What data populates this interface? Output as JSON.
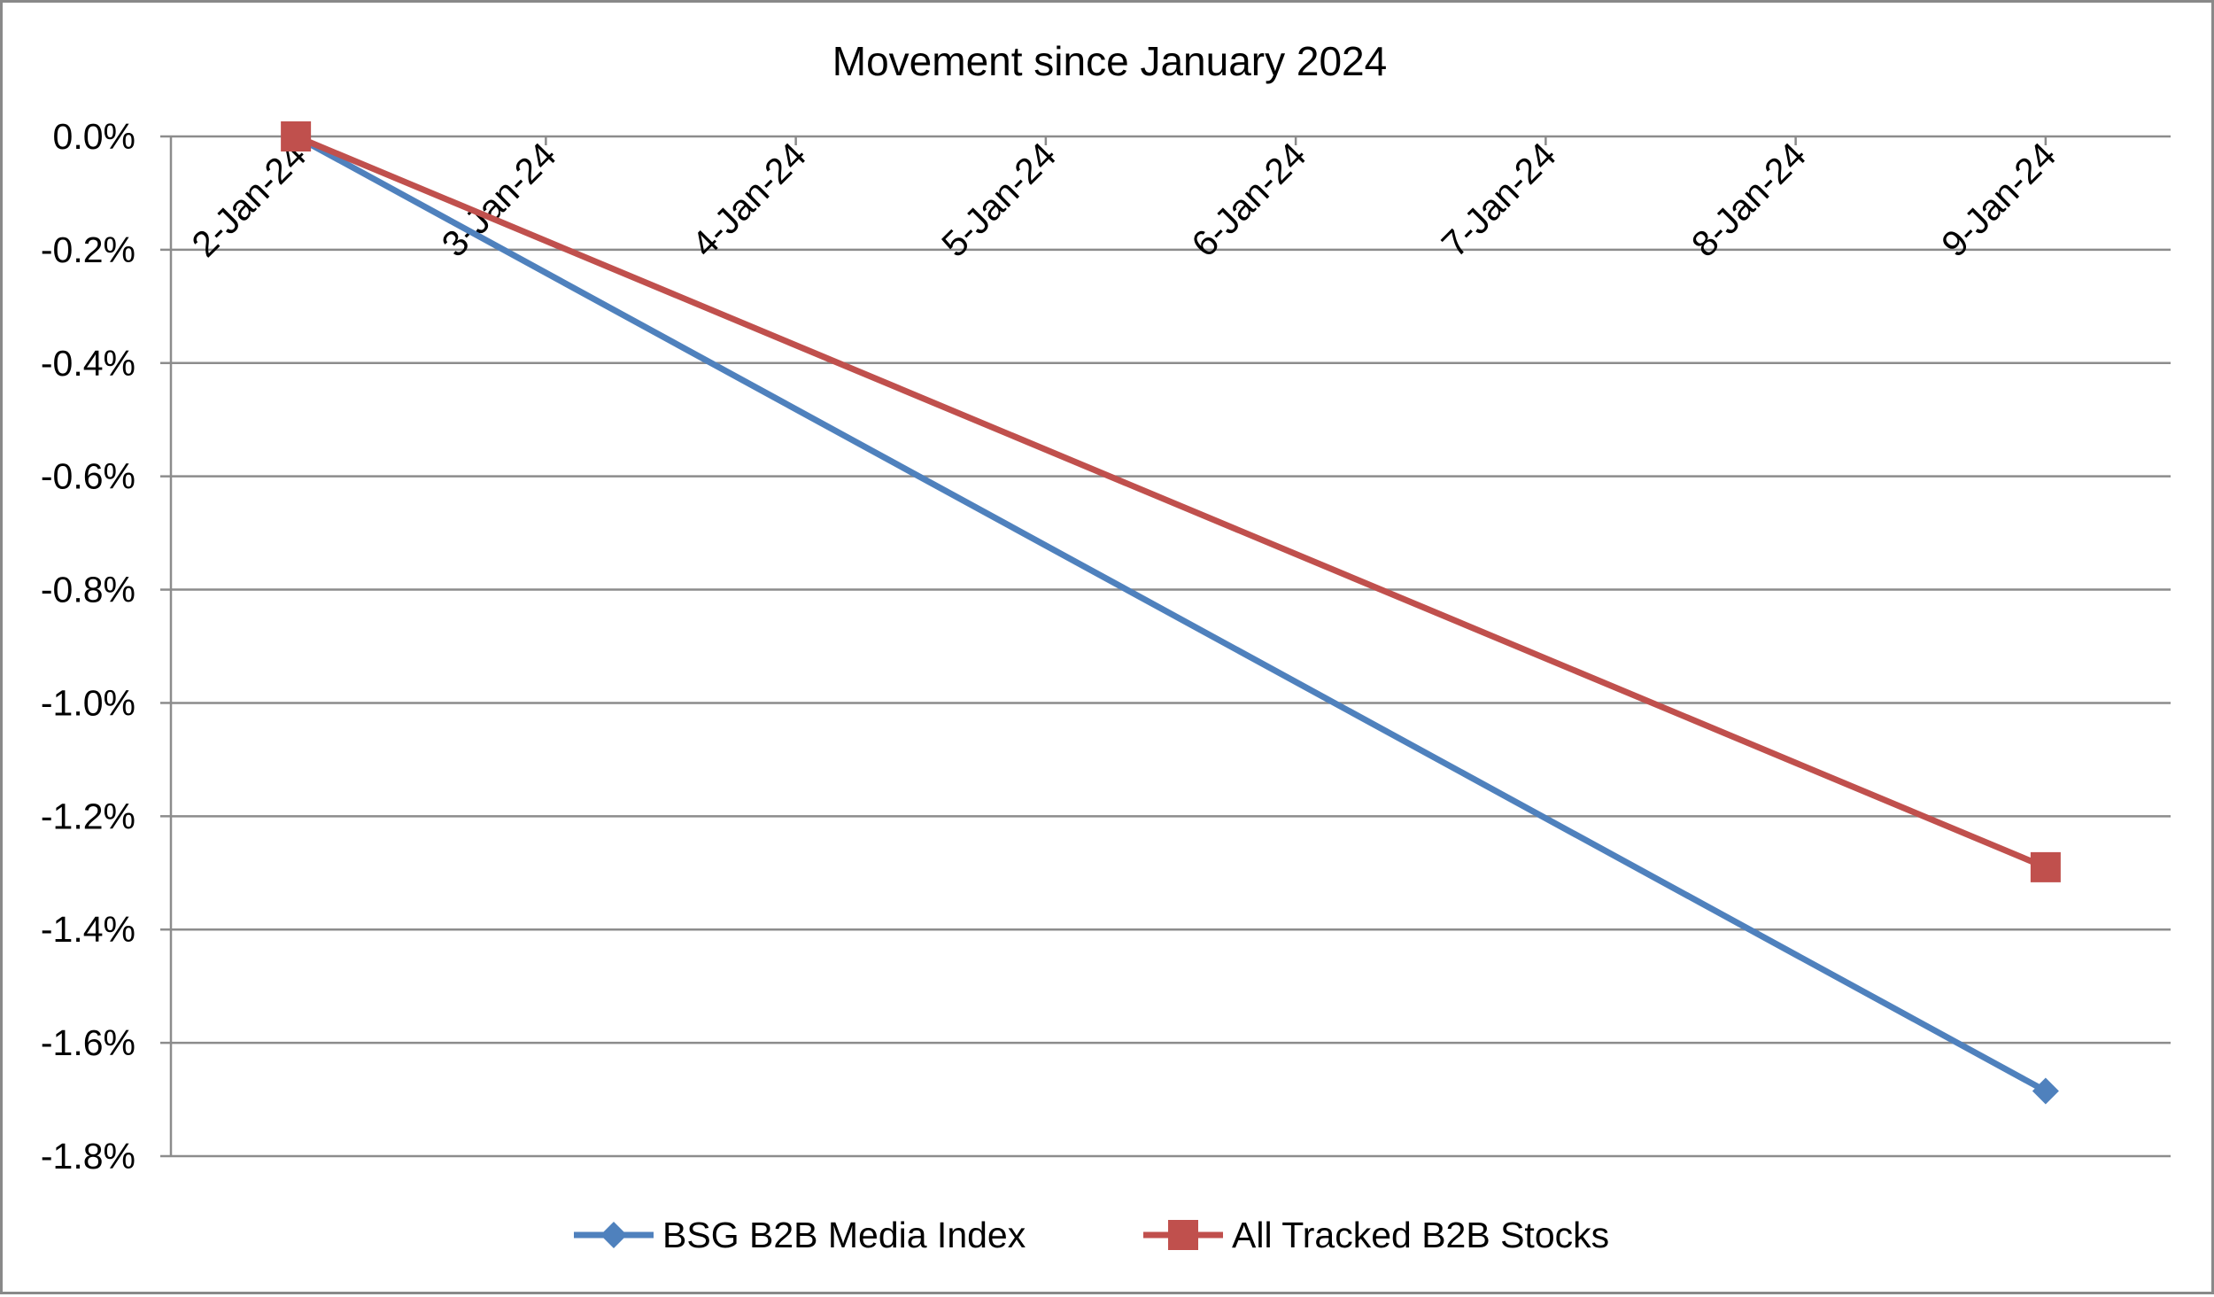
{
  "chart_data": {
    "type": "line",
    "title": "Movement since January 2024",
    "xlabel": "",
    "ylabel": "",
    "categories": [
      "2-Jan-24",
      "3-Jan-24",
      "4-Jan-24",
      "5-Jan-24",
      "6-Jan-24",
      "7-Jan-24",
      "8-Jan-24",
      "9-Jan-24"
    ],
    "y_ticks": [
      "0.0%",
      "-0.2%",
      "-0.4%",
      "-0.6%",
      "-0.8%",
      "-1.0%",
      "-1.2%",
      "-1.4%",
      "-1.6%",
      "-1.8%"
    ],
    "ylim": [
      -1.8,
      0.0
    ],
    "grid": true,
    "legend_position": "bottom",
    "series": [
      {
        "name": "BSG B2B Media Index",
        "color": "#4F81BD",
        "marker": "diamond",
        "points": [
          {
            "category": "2-Jan-24",
            "value": 0.0
          },
          {
            "category": "9-Jan-24",
            "value": -1.685
          }
        ]
      },
      {
        "name": "All Tracked B2B Stocks",
        "color": "#C0504D",
        "marker": "square",
        "points": [
          {
            "category": "2-Jan-24",
            "value": 0.0
          },
          {
            "category": "9-Jan-24",
            "value": -1.29
          }
        ]
      }
    ]
  }
}
